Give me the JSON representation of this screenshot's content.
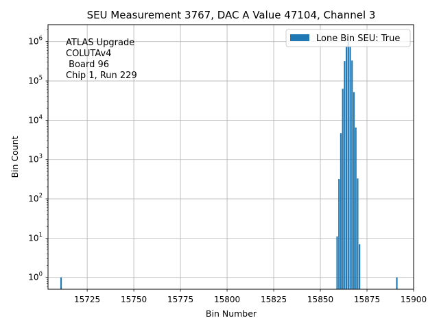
{
  "chart_data": {
    "type": "bar",
    "title": "SEU Measurement 3767, DAC A Value 47104, Channel 3",
    "xlabel": "Bin Number",
    "ylabel": "Bin Count",
    "xlim": [
      15704,
      15900
    ],
    "ylim": [
      0.5,
      2700000
    ],
    "yscale": "log",
    "grid": true,
    "legend_loc": "top-right",
    "x_ticks": [
      "15725",
      "15750",
      "15775",
      "15800",
      "15825",
      "15850",
      "15875",
      "15900"
    ],
    "y_ticks": [
      {
        "base": "10",
        "exp": "0"
      },
      {
        "base": "10",
        "exp": "1"
      },
      {
        "base": "10",
        "exp": "2"
      },
      {
        "base": "10",
        "exp": "3"
      },
      {
        "base": "10",
        "exp": "4"
      },
      {
        "base": "10",
        "exp": "5"
      },
      {
        "base": "10",
        "exp": "6"
      }
    ],
    "annotation": [
      "ATLAS Upgrade",
      "COLUTAv4",
      " Board 96",
      "Chip 1, Run 229"
    ],
    "bar_color": "#1f77b4",
    "series": [
      {
        "name": "Lone Bin SEU: True",
        "x": [
          15711,
          15859,
          15860,
          15861,
          15862,
          15863,
          15864,
          15865,
          15866,
          15867,
          15868,
          15869,
          15870,
          15871,
          15891
        ],
        "values": [
          1,
          11,
          320,
          4700,
          63000,
          320000,
          750000,
          1000000,
          750000,
          330000,
          52000,
          6500,
          330,
          7,
          1
        ]
      }
    ]
  }
}
